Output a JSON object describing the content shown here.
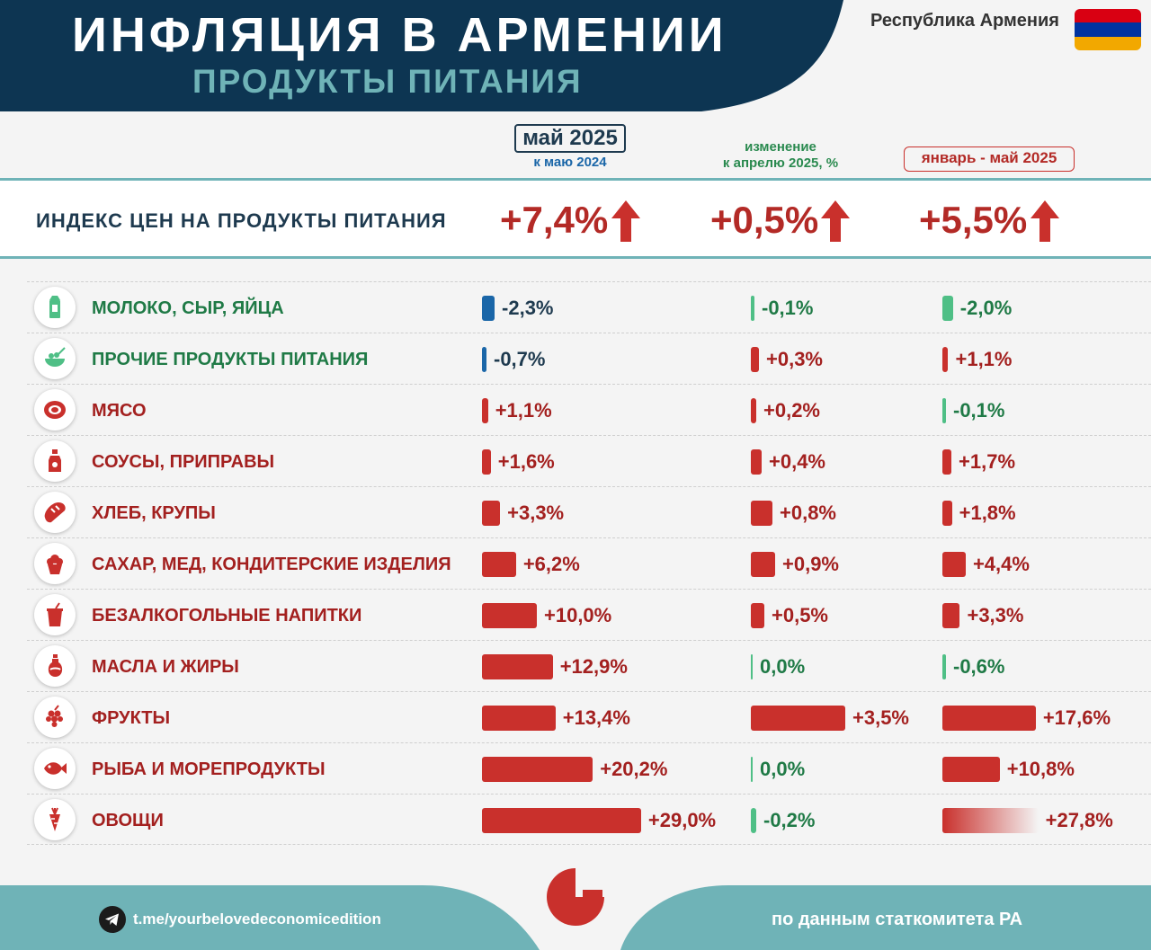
{
  "header": {
    "title": "ИНФЛЯЦИЯ В АРМЕНИИ",
    "subtitle": "ПРОДУКТЫ ПИТАНИЯ",
    "country": "Республика Армения",
    "flag_colors": [
      "#d90012",
      "#0033a0",
      "#f2a800"
    ]
  },
  "columns": {
    "may_label": "май 2025",
    "may_sub": "к маю 2024",
    "apr_line1": "изменение",
    "apr_line2": "к апрелю 2025, %",
    "jan_label": "январь - май 2025"
  },
  "index": {
    "label": "ИНДЕКС ЦЕН НА ПРОДУКТЫ ПИТАНИЯ",
    "may": "+7,4%",
    "apr": "+0,5%",
    "jan": "+5,5%"
  },
  "colors": {
    "navy": "#0d3552",
    "teal": "#6fb3b7",
    "red": "#c9302c",
    "blue": "#1a66a8",
    "green": "#4fbf86",
    "green_text": "#1f7a46",
    "red_text": "#a3201f",
    "navy_text": "#1e3a4f"
  },
  "chart_data": {
    "type": "bar",
    "categories": [
      "МОЛОКО, СЫР, ЯЙЦА",
      "ПРОЧИЕ ПРОДУКТЫ ПИТАНИЯ",
      "МЯСО",
      "СОУСЫ, ПРИПРАВЫ",
      "ХЛЕБ, КРУПЫ",
      "САХАР, МЕД, КОНДИТЕРСКИЕ ИЗДЕЛИЯ",
      "БЕЗАЛКОГОЛЬНЫЕ НАПИТКИ",
      "МАСЛА И ЖИРЫ",
      "ФРУКТЫ",
      "РЫБА И МОРЕПРОДУКТЫ",
      "ОВОЩИ"
    ],
    "icons": [
      "milk-icon",
      "bowl-icon",
      "meat-icon",
      "sauce-bottle-icon",
      "bread-icon",
      "cupcake-icon",
      "drink-cup-icon",
      "oil-bottle-icon",
      "grapes-icon",
      "fish-icon",
      "carrot-icon"
    ],
    "series": [
      {
        "name": "май 2025",
        "values": [
          -2.3,
          -0.7,
          1.1,
          1.6,
          3.3,
          6.2,
          10.0,
          12.9,
          13.4,
          20.2,
          29.0
        ],
        "labels": [
          "-2,3%",
          "-0,7%",
          "+1,1%",
          "+1,6%",
          "+3,3%",
          "+6,2%",
          "+10,0%",
          "+12,9%",
          "+13,4%",
          "+20,2%",
          "+29,0%"
        ]
      },
      {
        "name": "изменение к апрелю 2025, %",
        "values": [
          -0.1,
          0.3,
          0.2,
          0.4,
          0.8,
          0.9,
          0.5,
          0.0,
          3.5,
          0.0,
          -0.2
        ],
        "labels": [
          "-0,1%",
          "+0,3%",
          "+0,2%",
          "+0,4%",
          "+0,8%",
          "+0,9%",
          "+0,5%",
          "0,0%",
          "+3,5%",
          "0,0%",
          "-0,2%"
        ]
      },
      {
        "name": "январь - май 2025",
        "values": [
          -2.0,
          1.1,
          -0.1,
          1.7,
          1.8,
          4.4,
          3.3,
          -0.6,
          17.6,
          10.8,
          27.8
        ],
        "labels": [
          "-2,0%",
          "+1,1%",
          "-0,1%",
          "+1,7%",
          "+1,8%",
          "+4,4%",
          "+3,3%",
          "-0,6%",
          "+17,6%",
          "+10,8%",
          "+27,8%"
        ]
      }
    ]
  },
  "footer": {
    "telegram": "t.me/yourbelovedeconomicedition",
    "source": "по данным статкомитета РА"
  }
}
